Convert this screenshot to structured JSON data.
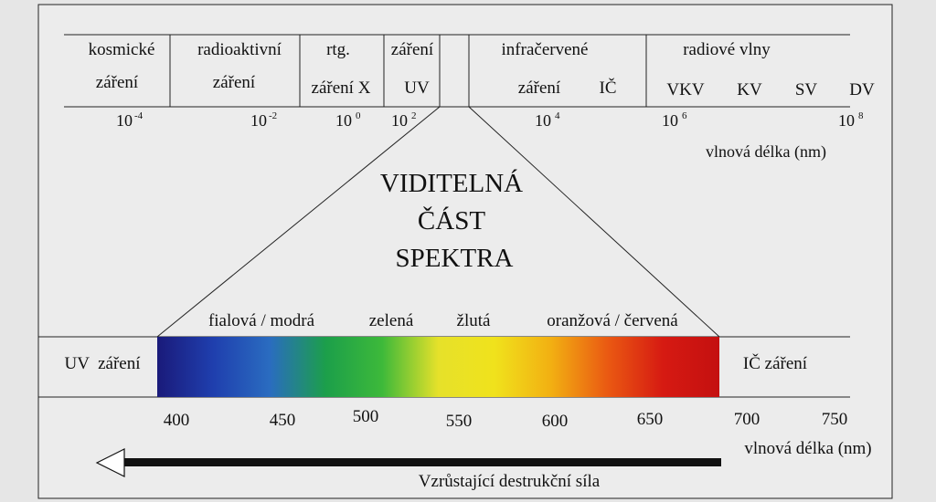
{
  "spectrum": {
    "categories": [
      {
        "id": "kosm",
        "lines": [
          "kosmické",
          "záření"
        ]
      },
      {
        "id": "radio",
        "lines": [
          "radioaktivní",
          "záření"
        ]
      },
      {
        "id": "rtg",
        "lines": [
          "rtg.",
          "záření X"
        ]
      },
      {
        "id": "uv",
        "lines": [
          "záření",
          "UV"
        ]
      },
      {
        "id": "ir",
        "lines": [
          "infračervené",
          "záření",
          "IČ"
        ]
      },
      {
        "id": "radiowaves",
        "lines": [
          "radiové vlny"
        ],
        "sub": [
          "VKV",
          "KV",
          "SV",
          "DV"
        ]
      }
    ],
    "ticks": [
      {
        "base": "10",
        "exp": "-4"
      },
      {
        "base": "10",
        "exp": "-2"
      },
      {
        "base": "10",
        "exp": "0"
      },
      {
        "base": "10",
        "exp": "2"
      },
      {
        "base": "10",
        "exp": "4"
      },
      {
        "base": "10",
        "exp": "6"
      },
      {
        "base": "10",
        "exp": "8"
      }
    ],
    "axis_label": "vlnová délka (nm)"
  },
  "visible": {
    "title_lines": [
      "VIDITELNÁ",
      "ČÁST",
      "SPEKTRA"
    ],
    "color_labels": [
      "fialová / modrá",
      "zelená",
      "žlutá",
      "oranžová / červená"
    ],
    "left_label": "UV  záření",
    "right_label": "IČ záření",
    "ticks": [
      400,
      450,
      500,
      550,
      600,
      650,
      700,
      750
    ],
    "axis_label": "vlnová délka (nm)",
    "gradient_colors": [
      "#1a1a7a",
      "#1f3fae",
      "#2a6cc0",
      "#1c9f4a",
      "#3db93a",
      "#e6e12a",
      "#f0e21c",
      "#f2b012",
      "#ea5a12",
      "#d61a12",
      "#c41010"
    ]
  },
  "arrow": {
    "label": "Vzrůstající destrukční síla"
  }
}
